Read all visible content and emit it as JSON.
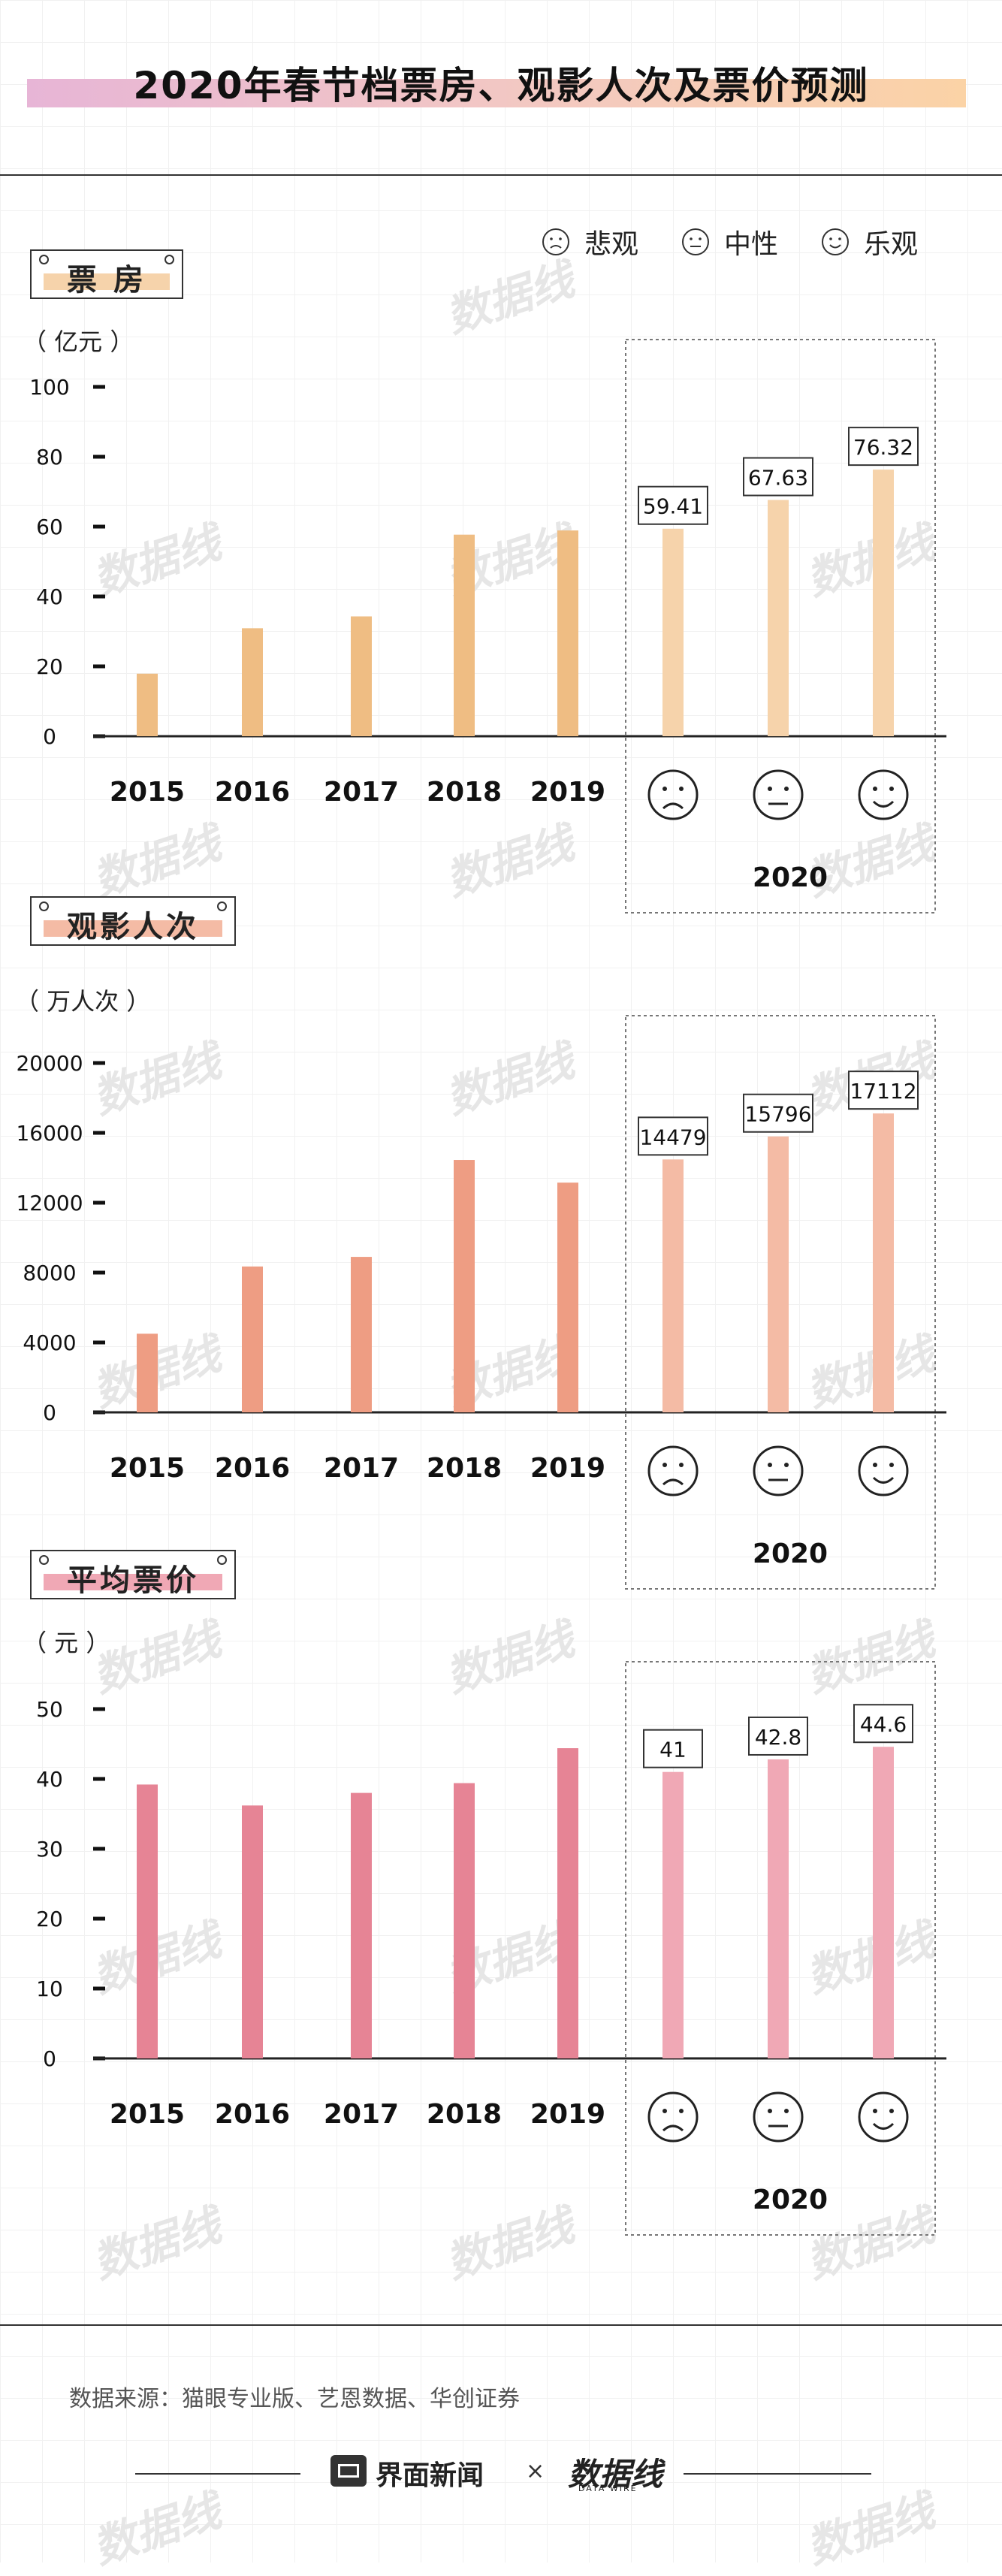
{
  "title": "2020年春节档票房、观影人次及票价预测",
  "legend": {
    "items": [
      {
        "label": "悲观",
        "face": "sad"
      },
      {
        "label": "中性",
        "face": "neutral"
      },
      {
        "label": "乐观",
        "face": "happy"
      }
    ]
  },
  "watermark": "数据线",
  "colors": {
    "box_office": "#efbd83",
    "box_office_forecast": "#f6d3ab",
    "attendance": "#ee9d83",
    "attendance_forecast": "#f4bba5",
    "price": "#e68495",
    "price_forecast": "#f0a8b5"
  },
  "chart_data": [
    {
      "type": "bar",
      "label": "票  房",
      "unit": "（ 亿元 ）",
      "categories": [
        "2015",
        "2016",
        "2017",
        "2018",
        "2019",
        "2020",
        "2020",
        "2020"
      ],
      "category_faces": [
        "",
        "",
        "",
        "",
        "",
        "sad",
        "neutral",
        "happy"
      ],
      "forecast_group_label": "2020",
      "values": [
        17.9,
        30.9,
        34.3,
        57.7,
        58.9,
        59.41,
        67.63,
        76.32
      ],
      "value_labels": [
        "",
        "",
        "",
        "",
        "",
        "59.41",
        "67.63",
        "76.32"
      ],
      "yticks": [
        "0",
        "20",
        "40",
        "60",
        "80",
        "100"
      ],
      "ylim": [
        0,
        100
      ]
    },
    {
      "type": "bar",
      "label": "观影人次",
      "unit": "（ 万人次 ）",
      "categories": [
        "2015",
        "2016",
        "2017",
        "2018",
        "2019",
        "2020",
        "2020",
        "2020"
      ],
      "category_faces": [
        "",
        "",
        "",
        "",
        "",
        "sad",
        "neutral",
        "happy"
      ],
      "forecast_group_label": "2020",
      "values": [
        4500,
        8350,
        8900,
        14450,
        13150,
        14479,
        15796,
        17112
      ],
      "value_labels": [
        "",
        "",
        "",
        "",
        "",
        "14479",
        "15796",
        "17112"
      ],
      "yticks": [
        "0",
        "4000",
        "8000",
        "12000",
        "16000",
        "20000"
      ],
      "ylim": [
        0,
        20000
      ]
    },
    {
      "type": "bar",
      "label": "平均票价",
      "unit": "（ 元 ）",
      "categories": [
        "2015",
        "2016",
        "2017",
        "2018",
        "2019",
        "2020",
        "2020",
        "2020"
      ],
      "category_faces": [
        "",
        "",
        "",
        "",
        "",
        "sad",
        "neutral",
        "happy"
      ],
      "forecast_group_label": "2020",
      "values": [
        39.2,
        36.2,
        38.0,
        39.4,
        44.4,
        41,
        42.8,
        44.6
      ],
      "value_labels": [
        "",
        "",
        "",
        "",
        "",
        "41",
        "42.8",
        "44.6"
      ],
      "yticks": [
        "0",
        "10",
        "20",
        "30",
        "40",
        "50"
      ],
      "ylim": [
        0,
        50
      ]
    }
  ],
  "footer": {
    "source": "数据来源：猫眼专业版、艺恩数据、华创证券",
    "brand_left": "界面新闻",
    "brand_sep": "×",
    "brand_right": "数据线",
    "brand_right_sub": "DATA WIRE"
  }
}
